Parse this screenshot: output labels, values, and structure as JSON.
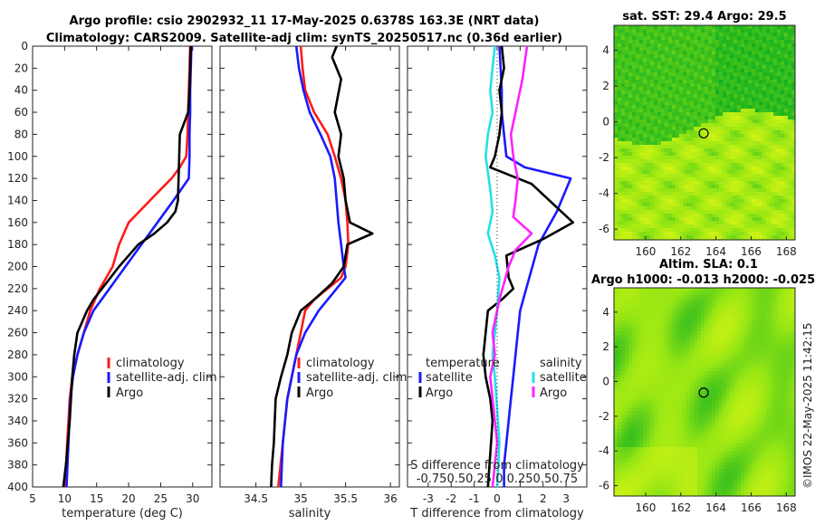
{
  "title_line1": "Argo profile: csio 2902932_11 17-May-2025 0.6378S 163.3E (NRT data)",
  "title_line2": "Climatology: CARS2009. Satellite-adj clim: synTS_20250517.nc (0.36d earlier)",
  "credit": "©IMOS 22-May-2025 11:42:15",
  "colors": {
    "clim": "#ff1a1a",
    "sat": "#1a1aff",
    "argo": "#000000",
    "cyan": "#22e0e8",
    "magenta": "#ff22ff"
  },
  "legend1": [
    "climatology",
    "satellite-adj. clim",
    "Argo"
  ],
  "legend2": [
    "climatology",
    "satellite-adj. clim",
    "Argo"
  ],
  "legend3": {
    "t_title": "temperature",
    "s_title": "salinity",
    "t_items": [
      "satellite",
      "Argo"
    ],
    "s_items": [
      "satellite",
      "Argo"
    ]
  },
  "diff_note_line1": "S difference from climatology",
  "diff_note_line2": "-0.750.50.25 0 0.250.50.75",
  "sst_title": "sat. SST: 29.4  Argo: 29.5",
  "sla_title1": "Altim. SLA: 0.1",
  "sla_title2": "Argo h1000: -0.013 h2000: -0.025",
  "chart_data": [
    {
      "type": "line",
      "id": "temperature",
      "xlabel": "temperature (deg C)",
      "ylabel": "",
      "xlim": [
        5,
        33
      ],
      "ylim": [
        400,
        0
      ],
      "xticks": [
        5,
        10,
        15,
        20,
        25,
        30
      ],
      "yticks": [
        0,
        20,
        40,
        60,
        80,
        100,
        120,
        140,
        160,
        180,
        200,
        220,
        240,
        260,
        280,
        300,
        320,
        340,
        360,
        380,
        400
      ],
      "series": [
        {
          "name": "climatology",
          "color": "clim",
          "x": [
            29.6,
            29.5,
            29.4,
            29.3,
            29.2,
            29.0,
            28.0,
            26.7,
            25.0,
            22.5,
            20.0,
            18.5,
            17.5,
            15.5,
            14.0,
            13.0,
            12.0,
            11.2,
            10.8,
            10.4,
            10.1
          ],
          "y": [
            0,
            20,
            40,
            60,
            80,
            100,
            110,
            120,
            130,
            145,
            160,
            180,
            200,
            220,
            240,
            260,
            280,
            300,
            320,
            360,
            400
          ]
        },
        {
          "name": "satellite-adj. clim",
          "color": "sat",
          "x": [
            29.8,
            29.7,
            29.6,
            29.6,
            29.5,
            29.5,
            29.4,
            27.0,
            24.5,
            22.0,
            19.5,
            17.0,
            14.5,
            13.0,
            12.0,
            11.3,
            10.9,
            10.6,
            10.3
          ],
          "y": [
            0,
            20,
            40,
            60,
            80,
            100,
            120,
            140,
            160,
            180,
            200,
            220,
            240,
            260,
            280,
            300,
            320,
            360,
            400
          ]
        },
        {
          "name": "Argo",
          "color": "argo",
          "x": [
            29.7,
            29.6,
            29.5,
            29.3,
            28.0,
            27.9,
            27.8,
            27.7,
            27.3,
            26.0,
            24.0,
            21.5,
            20.0,
            18.5,
            16.5,
            14.5,
            13.5,
            12.0,
            11.5,
            11.2,
            11.0,
            10.8,
            10.5,
            10.2,
            9.8
          ],
          "y": [
            0,
            20,
            40,
            60,
            80,
            100,
            120,
            140,
            150,
            160,
            170,
            180,
            190,
            200,
            215,
            230,
            240,
            260,
            280,
            300,
            320,
            340,
            360,
            380,
            400
          ]
        }
      ]
    },
    {
      "type": "line",
      "id": "salinity",
      "xlabel": "salinity",
      "ylabel": "",
      "xlim": [
        34.1,
        36.1
      ],
      "ylim": [
        400,
        0
      ],
      "xticks": [
        34.5,
        35,
        35.5,
        36
      ],
      "series": [
        {
          "name": "climatology",
          "color": "clim",
          "x": [
            35.0,
            35.02,
            35.05,
            35.15,
            35.3,
            35.38,
            35.45,
            35.5,
            35.52,
            35.53,
            35.5,
            35.45,
            35.3,
            35.15,
            35.05,
            35.0,
            34.95,
            34.9,
            34.85,
            34.8,
            34.75
          ],
          "y": [
            0,
            20,
            40,
            60,
            80,
            100,
            120,
            140,
            160,
            180,
            200,
            210,
            220,
            230,
            240,
            260,
            280,
            300,
            320,
            360,
            400
          ]
        },
        {
          "name": "satellite-adj. clim",
          "color": "sat",
          "x": [
            34.95,
            34.98,
            35.03,
            35.1,
            35.22,
            35.33,
            35.38,
            35.4,
            35.42,
            35.45,
            35.48,
            35.5,
            35.4,
            35.2,
            35.05,
            34.95,
            34.9,
            34.85,
            34.8,
            34.78
          ],
          "y": [
            0,
            20,
            40,
            60,
            80,
            100,
            120,
            140,
            160,
            180,
            200,
            210,
            220,
            240,
            260,
            280,
            300,
            320,
            360,
            400
          ]
        },
        {
          "name": "Argo",
          "color": "argo",
          "x": [
            35.4,
            35.35,
            35.45,
            35.38,
            35.45,
            35.42,
            35.48,
            35.5,
            35.55,
            35.8,
            35.52,
            35.48,
            35.35,
            35.15,
            35.0,
            34.9,
            34.85,
            34.78,
            34.72,
            34.7,
            34.68,
            34.67
          ],
          "y": [
            0,
            10,
            30,
            60,
            80,
            100,
            120,
            140,
            160,
            170,
            180,
            200,
            215,
            230,
            240,
            260,
            280,
            300,
            320,
            360,
            380,
            400
          ]
        }
      ]
    },
    {
      "type": "line",
      "id": "difference",
      "xlabel": "T difference from climatology",
      "xlim": [
        -3.9,
        3.9
      ],
      "ylim": [
        400,
        0
      ],
      "xticks": [
        -3,
        -2,
        -1,
        0,
        1,
        2,
        3
      ],
      "series": [
        {
          "name": "temperature satellite",
          "color": "sat",
          "x": [
            0.1,
            0.15,
            0.2,
            0.2,
            0.3,
            0.4,
            1.2,
            3.2,
            2.6,
            1.8,
            1.4,
            1.0,
            0.9,
            0.8,
            0.7,
            0.6,
            0.5,
            0.4,
            0.3,
            0.3
          ],
          "y": [
            0,
            20,
            40,
            60,
            80,
            100,
            110,
            120,
            150,
            180,
            210,
            240,
            260,
            280,
            300,
            320,
            340,
            360,
            380,
            400
          ]
        },
        {
          "name": "temperature Argo",
          "color": "argo",
          "x": [
            0.2,
            0.3,
            0.1,
            0.2,
            0.1,
            -0.1,
            -0.3,
            1.5,
            3.3,
            2.0,
            0.4,
            0.5,
            0.7,
            0.2,
            -0.4,
            -0.5,
            -0.6,
            -0.5,
            -0.3,
            -0.2,
            -0.3,
            -0.4
          ],
          "y": [
            0,
            20,
            40,
            60,
            80,
            100,
            110,
            125,
            160,
            175,
            190,
            210,
            220,
            230,
            240,
            260,
            280,
            300,
            320,
            340,
            370,
            400
          ]
        },
        {
          "name": "salinity satellite",
          "color": "cyan",
          "x": [
            -0.1,
            -0.2,
            -0.3,
            -0.2,
            -0.4,
            -0.5,
            -0.3,
            -0.2,
            -0.4,
            -0.1,
            0.1,
            0.0,
            -0.1,
            -0.2,
            -0.1,
            0.0,
            0.1,
            0.0
          ],
          "y": [
            0,
            20,
            40,
            60,
            80,
            100,
            130,
            150,
            170,
            190,
            210,
            240,
            260,
            280,
            300,
            330,
            360,
            400
          ]
        },
        {
          "name": "salinity Argo",
          "color": "magenta",
          "x": [
            1.3,
            1.1,
            0.8,
            0.6,
            0.7,
            0.9,
            0.8,
            0.7,
            1.5,
            0.8,
            0.5,
            0.1,
            -0.2,
            -0.1,
            -0.3,
            -0.2,
            -0.1,
            0.0,
            -0.1,
            -0.2
          ],
          "y": [
            0,
            30,
            60,
            80,
            100,
            120,
            140,
            155,
            170,
            185,
            200,
            230,
            260,
            280,
            300,
            320,
            340,
            360,
            380,
            400
          ]
        }
      ]
    },
    {
      "type": "heatmap",
      "id": "sst-map",
      "title": "sat. SST: 29.4  Argo: 29.5",
      "xlim": [
        158.2,
        168.5
      ],
      "ylim": [
        -6.6,
        5.4
      ],
      "xticks": [
        160,
        162,
        164,
        166,
        168
      ],
      "yticks": [
        -6,
        -4,
        -2,
        0,
        2,
        4
      ],
      "argo_position": [
        163.3,
        -0.64
      ]
    },
    {
      "type": "heatmap",
      "id": "sla-map",
      "xlim": [
        158.2,
        168.5
      ],
      "ylim": [
        -6.6,
        5.4
      ],
      "xticks": [
        160,
        162,
        164,
        166,
        168
      ],
      "yticks": [
        -6,
        -4,
        -2,
        0,
        2,
        4
      ],
      "argo_position": [
        163.3,
        -0.64
      ]
    }
  ]
}
